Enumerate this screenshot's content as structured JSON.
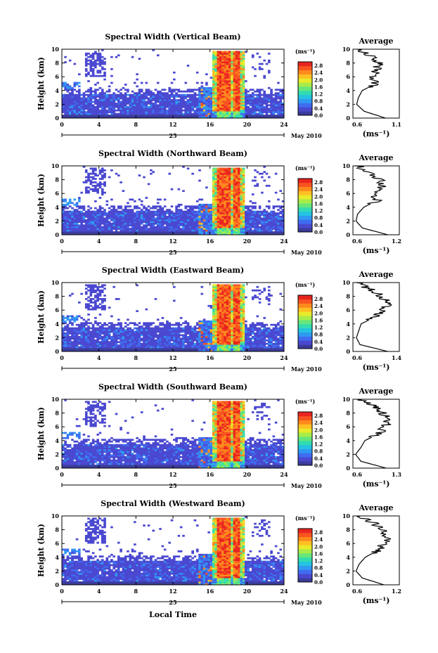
{
  "figure": {
    "date_label": "May 2010",
    "day_label": "25",
    "xlabel": "Local Time"
  },
  "colorbar": {
    "unit_label": "(ms⁻¹)",
    "ticks": [
      2.8,
      2.4,
      2.0,
      1.6,
      1.2,
      0.8,
      0.4,
      0.0
    ],
    "tick_labels": [
      "2.8",
      "2.4",
      "2.0",
      "1.6",
      "1.2",
      "0.8",
      "0.4",
      "0.0"
    ],
    "colors": [
      "#3b3b9c",
      "#4a48d0",
      "#3f6cf0",
      "#2f9af2",
      "#24c4e0",
      "#33dcb0",
      "#66e67a",
      "#a8ec48",
      "#e8ea2a",
      "#ffc023",
      "#ff8a1c",
      "#f85420",
      "#e8241f"
    ]
  },
  "chart_data": [
    {
      "type": "heatmap",
      "title": "Spectral Width (Vertical Beam)",
      "xlabel": "",
      "ylabel": "Height (km)",
      "xlim": [
        0,
        24
      ],
      "ylim": [
        0,
        10
      ],
      "x_ticks": [
        0,
        4,
        8,
        12,
        16,
        20,
        24
      ],
      "y_ticks": [
        0,
        2,
        4,
        6,
        8,
        10
      ],
      "colorbar_range": [
        0.0,
        3.0
      ],
      "average": {
        "title": "Average",
        "xlabel": "(ms⁻¹)",
        "xlim": [
          0.6,
          1.1
        ],
        "x_tick_labels": [
          "0.6",
          "1.1"
        ],
        "heights": [
          0,
          1,
          2,
          3,
          4,
          5,
          6,
          7,
          8,
          9,
          10
        ],
        "values": [
          0.95,
          0.72,
          0.64,
          0.66,
          0.7,
          0.85,
          0.82,
          0.86,
          0.88,
          0.8,
          0.62
        ]
      }
    },
    {
      "type": "heatmap",
      "title": "Spectral Width (Northward Beam)",
      "xlabel": "",
      "ylabel": "Height (km)",
      "xlim": [
        0,
        24
      ],
      "ylim": [
        0,
        10
      ],
      "x_ticks": [
        0,
        4,
        8,
        12,
        16,
        20,
        24
      ],
      "y_ticks": [
        0,
        2,
        4,
        6,
        8,
        10
      ],
      "colorbar_range": [
        0.0,
        3.0
      ],
      "average": {
        "title": "Average",
        "xlabel": "(ms⁻¹)",
        "xlim": [
          0.6,
          1.2
        ],
        "x_tick_labels": [
          "0.6",
          "1.2"
        ],
        "heights": [
          0,
          1,
          2,
          3,
          4,
          5,
          6,
          7,
          8,
          9,
          10
        ],
        "values": [
          1.05,
          0.72,
          0.64,
          0.66,
          0.74,
          0.92,
          0.88,
          0.98,
          0.95,
          0.82,
          0.66
        ]
      }
    },
    {
      "type": "heatmap",
      "title": "Spectral Width (Eastward Beam)",
      "xlabel": "",
      "ylabel": "Height (km)",
      "xlim": [
        0,
        24
      ],
      "ylim": [
        0,
        10
      ],
      "x_ticks": [
        0,
        4,
        8,
        12,
        16,
        20,
        24
      ],
      "y_ticks": [
        0,
        2,
        4,
        6,
        8,
        10
      ],
      "colorbar_range": [
        0.0,
        3.0
      ],
      "average": {
        "title": "Average",
        "xlabel": "(ms⁻¹)",
        "xlim": [
          0.6,
          1.4
        ],
        "x_tick_labels": [
          "0.6",
          "1.4"
        ],
        "heights": [
          0,
          1,
          2,
          3,
          4,
          5,
          6,
          7,
          8,
          9,
          10
        ],
        "values": [
          1.2,
          0.72,
          0.66,
          0.7,
          0.74,
          0.98,
          1.1,
          1.22,
          1.1,
          0.9,
          0.68
        ]
      }
    },
    {
      "type": "heatmap",
      "title": "Spectral Width (Southward Beam)",
      "xlabel": "",
      "ylabel": "Height (km)",
      "xlim": [
        0,
        24
      ],
      "ylim": [
        0,
        10
      ],
      "x_ticks": [
        0,
        4,
        8,
        12,
        16,
        20,
        24
      ],
      "y_ticks": [
        0,
        2,
        4,
        6,
        8,
        10
      ],
      "colorbar_range": [
        0.0,
        3.0
      ],
      "average": {
        "title": "Average",
        "xlabel": "(ms⁻¹)",
        "xlim": [
          0.6,
          1.3
        ],
        "x_tick_labels": [
          "0.6",
          "1.3"
        ],
        "heights": [
          0,
          1,
          2,
          3,
          4,
          5,
          6,
          7,
          8,
          9,
          10
        ],
        "values": [
          1.1,
          0.72,
          0.64,
          0.72,
          0.78,
          1.0,
          1.08,
          1.14,
          1.05,
          0.95,
          0.7
        ]
      }
    },
    {
      "type": "heatmap",
      "title": "Spectral Width (Westward Beam)",
      "xlabel": "Local Time",
      "ylabel": "Height (km)",
      "xlim": [
        0,
        24
      ],
      "ylim": [
        0,
        10
      ],
      "x_ticks": [
        0,
        4,
        8,
        12,
        16,
        20,
        24
      ],
      "y_ticks": [
        0,
        2,
        4,
        6,
        8,
        10
      ],
      "colorbar_range": [
        0.0,
        3.0
      ],
      "average": {
        "title": "Average",
        "xlabel": "(ms⁻¹)",
        "xlim": [
          0.6,
          1.2
        ],
        "x_tick_labels": [
          "0.6",
          "1.2"
        ],
        "heights": [
          0,
          1,
          2,
          3,
          4,
          5,
          6,
          7,
          8,
          9,
          10
        ],
        "values": [
          1.0,
          0.72,
          0.64,
          0.68,
          0.76,
          0.92,
          1.0,
          1.04,
          0.98,
          0.86,
          0.66
        ]
      }
    }
  ]
}
